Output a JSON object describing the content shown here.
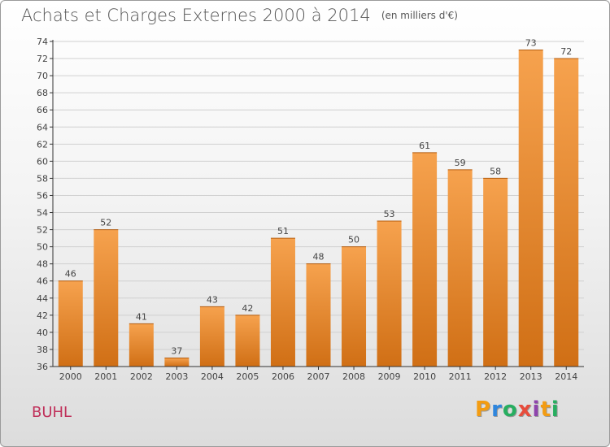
{
  "header": {
    "title": "Achats et Charges Externes 2000 à 2014",
    "subtitle": "(en milliers d'€)"
  },
  "commune": "BUHL",
  "logo": {
    "text": "Proxiti",
    "letters": [
      {
        "ch": "P",
        "color": "#f39c12"
      },
      {
        "ch": "r",
        "color": "#2e86de"
      },
      {
        "ch": "o",
        "color": "#27ae60"
      },
      {
        "ch": "x",
        "color": "#e74c3c"
      },
      {
        "ch": "i",
        "color": "#8e44ad"
      },
      {
        "ch": "t",
        "color": "#f39c12"
      },
      {
        "ch": "i",
        "color": "#27ae60"
      }
    ]
  },
  "colors": {
    "bar_light": "#f6a24e",
    "bar_dark": "#d06f15",
    "grid": "#d0d0d0",
    "axis": "#333333"
  },
  "chart_data": {
    "type": "bar",
    "categories": [
      "2000",
      "2001",
      "2002",
      "2003",
      "2004",
      "2005",
      "2006",
      "2007",
      "2008",
      "2009",
      "2010",
      "2011",
      "2012",
      "2013",
      "2014"
    ],
    "values": [
      46,
      52,
      41,
      37,
      43,
      42,
      51,
      48,
      50,
      53,
      61,
      59,
      58,
      73,
      72
    ],
    "ylim": [
      36,
      74
    ],
    "yticks": [
      36,
      38,
      40,
      42,
      44,
      46,
      48,
      50,
      52,
      54,
      56,
      58,
      60,
      62,
      64,
      66,
      68,
      70,
      72,
      74
    ],
    "grid": true,
    "data_labels": true
  }
}
